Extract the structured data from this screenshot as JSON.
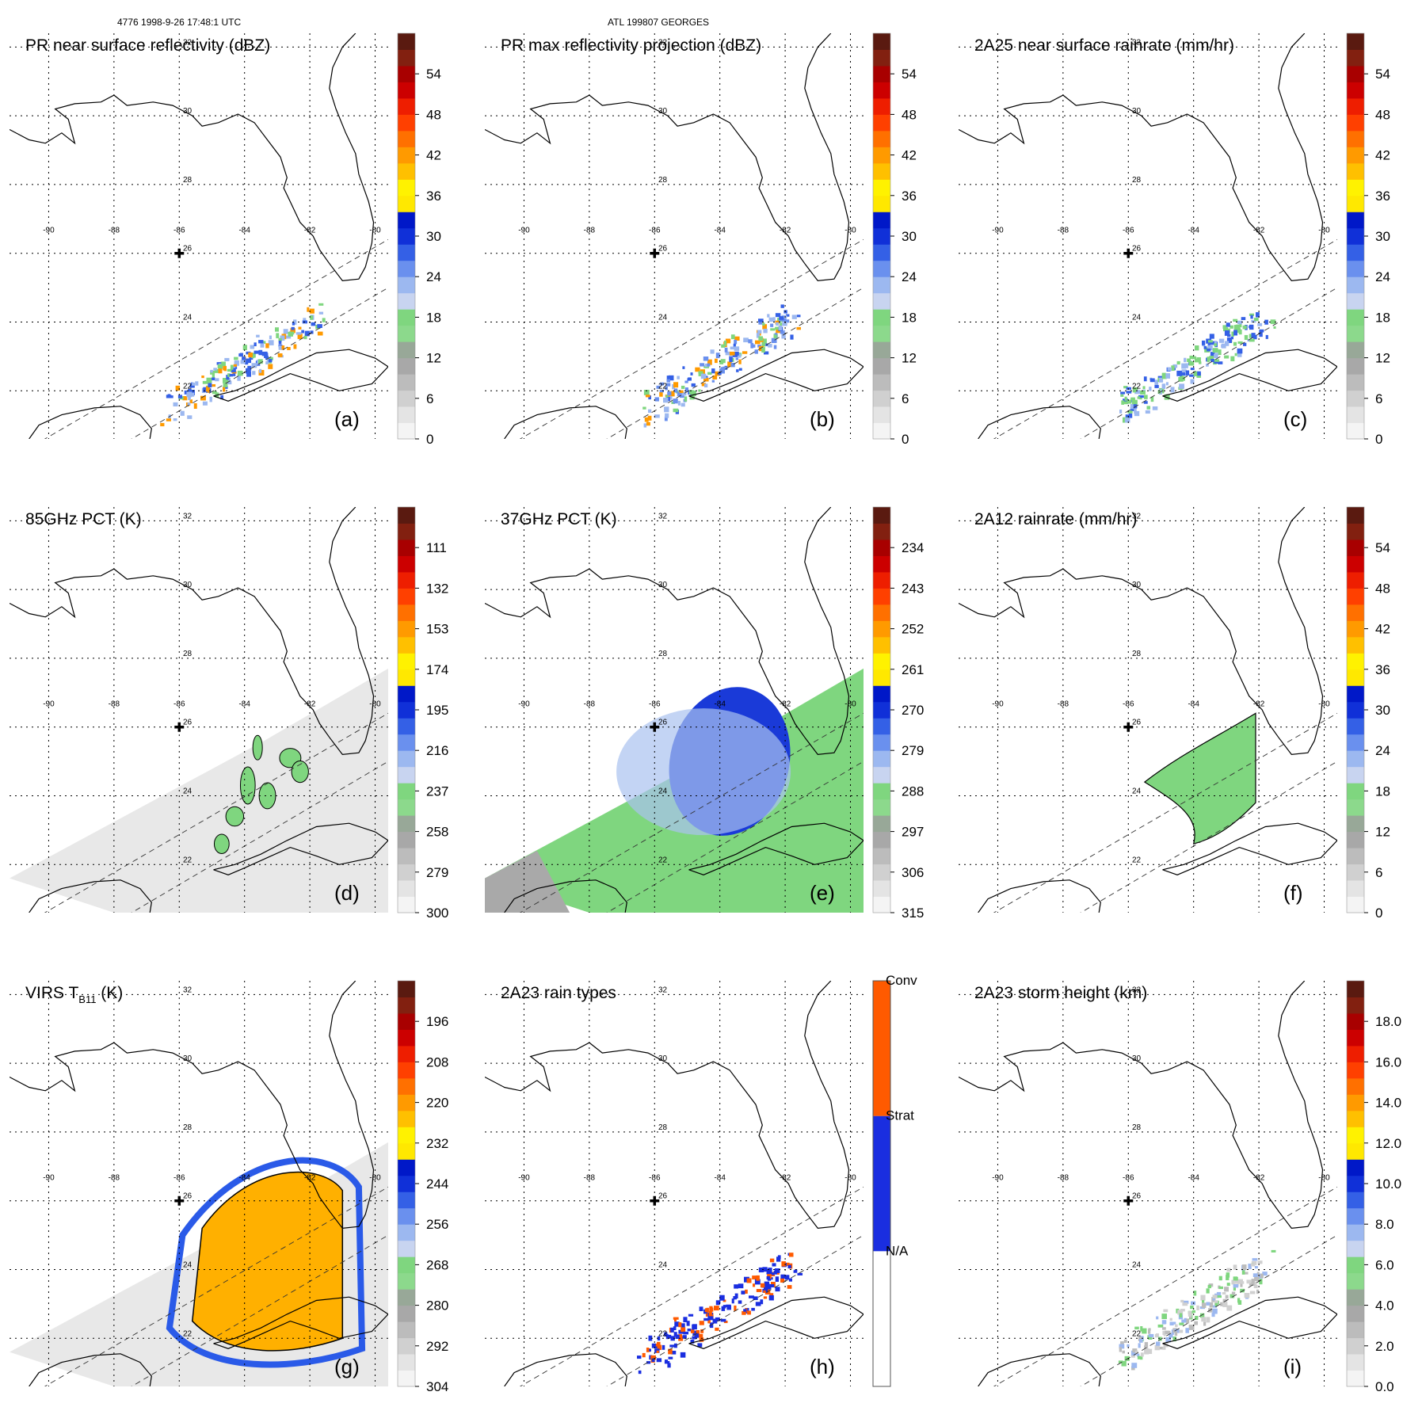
{
  "header": {
    "orbit_time": "4776 1998-9-26 17:48:1 UTC",
    "storm": "ATL 199807 GEORGES"
  },
  "map": {
    "lon_labels": [
      "-90",
      "-88",
      "-86",
      "-84",
      "-82",
      "-80"
    ],
    "lat_labels": [
      "32",
      "30",
      "28",
      "26",
      "24",
      "22"
    ]
  },
  "panels": [
    {
      "label": "(a)",
      "title": "PR near surface reflectivity (dBZ)",
      "ticks": [
        "54",
        "48",
        "42",
        "36",
        "30",
        "24",
        "18",
        "12",
        "6",
        "0"
      ]
    },
    {
      "label": "(b)",
      "title": "PR max reflectivity projection (dBZ)",
      "ticks": [
        "54",
        "48",
        "42",
        "36",
        "30",
        "24",
        "18",
        "12",
        "6",
        "0"
      ]
    },
    {
      "label": "(c)",
      "title": "2A25 near surface rainrate (mm/hr)",
      "ticks": [
        "54",
        "48",
        "42",
        "36",
        "30",
        "24",
        "18",
        "12",
        "6",
        "0"
      ]
    },
    {
      "label": "(d)",
      "title": "85GHz PCT (K)",
      "ticks": [
        "111",
        "132",
        "153",
        "174",
        "195",
        "216",
        "237",
        "258",
        "279",
        "300"
      ]
    },
    {
      "label": "(e)",
      "title": "37GHz PCT (K)",
      "ticks": [
        "234",
        "243",
        "252",
        "261",
        "270",
        "279",
        "288",
        "297",
        "306",
        "315"
      ]
    },
    {
      "label": "(f)",
      "title": "2A12 rainrate (mm/hr)",
      "ticks": [
        "54",
        "48",
        "42",
        "36",
        "30",
        "24",
        "18",
        "12",
        "6",
        "0"
      ]
    },
    {
      "label": "(g)",
      "title_main": "VIRS T",
      "title_sub": "B11",
      "title_unit": " (K)",
      "ticks": [
        "196",
        "208",
        "220",
        "232",
        "244",
        "256",
        "268",
        "280",
        "292",
        "304"
      ]
    },
    {
      "label": "(h)",
      "title": "2A23 rain types",
      "ticks": [
        "Conv",
        "Strat",
        "N/A"
      ]
    },
    {
      "label": "(i)",
      "title": "2A23 storm height (km)",
      "ticks": [
        "18.0",
        "16.0",
        "14.0",
        "12.0",
        "10.0",
        "8.0",
        "6.0",
        "4.0",
        "2.0",
        "0.0"
      ]
    }
  ],
  "palettes": {
    "standard": [
      "#f4f4f4",
      "#e4e4e4",
      "#d0d0d0",
      "#bcbcbc",
      "#a8a8a8",
      "#98a898",
      "#8cd98c",
      "#7fd67f",
      "#c8d4f0",
      "#9cb8f0",
      "#6a90ee",
      "#3460e6",
      "#1030d8",
      "#0018c8",
      "#ffe800",
      "#fff200",
      "#ffc000",
      "#ff9a00",
      "#ff7000",
      "#ff4000",
      "#ee1e00",
      "#cc0000",
      "#a80000",
      "#822010",
      "#5a1a10"
    ],
    "rain_types": [
      "#ffffff",
      "#1a2ee0",
      "#ff5a00"
    ]
  }
}
